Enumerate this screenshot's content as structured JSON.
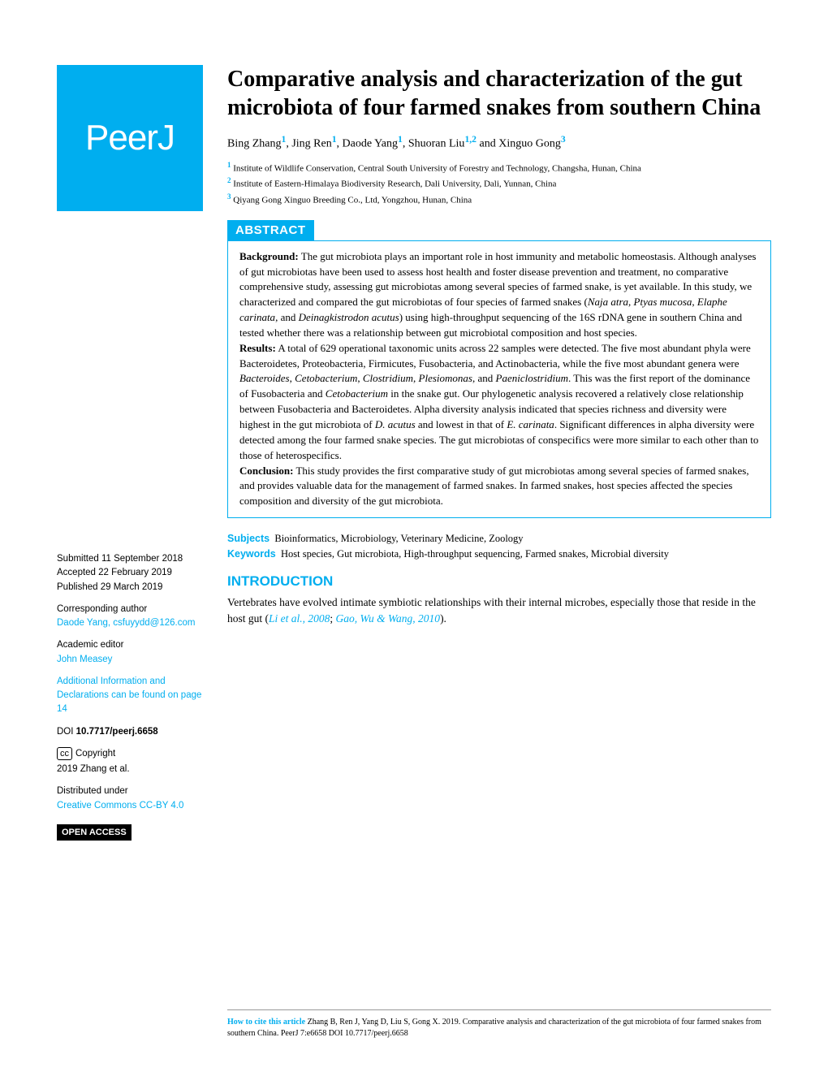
{
  "logo": "PeerJ",
  "title": "Comparative analysis and characterization of the gut microbiota of four farmed snakes from southern China",
  "authors_html": "Bing Zhang<sup>1</sup>, Jing Ren<sup>1</sup>, Daode Yang<sup>1</sup>, Shuoran Liu<sup>1,2</sup> and Xinguo Gong<sup>3</sup>",
  "affiliations": [
    {
      "n": "1",
      "text": "Institute of Wildlife Conservation, Central South University of Forestry and Technology, Changsha, Hunan, China"
    },
    {
      "n": "2",
      "text": "Institute of Eastern-Himalaya Biodiversity Research, Dali University, Dali, Yunnan, China"
    },
    {
      "n": "3",
      "text": "Qiyang Gong Xinguo Breeding Co., Ltd, Yongzhou, Hunan, China"
    }
  ],
  "abstract_label": "ABSTRACT",
  "abstract": {
    "background_label": "Background:",
    "background": "The gut microbiota plays an important role in host immunity and metabolic homeostasis. Although analyses of gut microbiotas have been used to assess host health and foster disease prevention and treatment, no comparative comprehensive study, assessing gut microbiotas among several species of farmed snake, is yet available. In this study, we characterized and compared the gut microbiotas of four species of farmed snakes (Naja atra, Ptyas mucosa, Elaphe carinata, and Deinagkistrodon acutus) using high-throughput sequencing of the 16S rDNA gene in southern China and tested whether there was a relationship between gut microbiotal composition and host species.",
    "results_label": "Results:",
    "results": "A total of 629 operational taxonomic units across 22 samples were detected. The five most abundant phyla were Bacteroidetes, Proteobacteria, Firmicutes, Fusobacteria, and Actinobacteria, while the five most abundant genera were Bacteroides, Cetobacterium, Clostridium, Plesiomonas, and Paeniclostridium. This was the first report of the dominance of Fusobacteria and Cetobacterium in the snake gut. Our phylogenetic analysis recovered a relatively close relationship between Fusobacteria and Bacteroidetes. Alpha diversity analysis indicated that species richness and diversity were highest in the gut microbiota of D. acutus and lowest in that of E. carinata. Significant differences in alpha diversity were detected among the four farmed snake species. The gut microbiotas of conspecifics were more similar to each other than to those of heterospecifics.",
    "conclusion_label": "Conclusion:",
    "conclusion": "This study provides the first comparative study of gut microbiotas among several species of farmed snakes, and provides valuable data for the management of farmed snakes. In farmed snakes, host species affected the species composition and diversity of the gut microbiota."
  },
  "subjects_label": "Subjects",
  "subjects": "Bioinformatics, Microbiology, Veterinary Medicine, Zoology",
  "keywords_label": "Keywords",
  "keywords": "Host species, Gut microbiota, High-throughput sequencing, Farmed snakes, Microbial diversity",
  "intro_header": "INTRODUCTION",
  "intro_text_pre": "Vertebrates have evolved intimate symbiotic relationships with their internal microbes, especially those that reside in the host gut (",
  "intro_cite1": "Li et al., 2008",
  "intro_sep": "; ",
  "intro_cite2": "Gao, Wu & Wang, 2010",
  "intro_text_post": ").",
  "sidebar": {
    "submitted_label": "Submitted",
    "submitted": "11 September 2018",
    "accepted_label": "Accepted",
    "accepted": "22 February 2019",
    "published_label": "Published",
    "published": "29 March 2019",
    "corresponding_label": "Corresponding author",
    "corresponding": "Daode Yang, csfuyydd@126.com",
    "editor_label": "Academic editor",
    "editor": "John Measey",
    "additional": "Additional Information and Declarations can be found on page 14",
    "doi_label": "DOI",
    "doi": "10.7717/peerj.6658",
    "copyright_label": "Copyright",
    "copyright": "2019 Zhang et al.",
    "distributed_label": "Distributed under",
    "distributed": "Creative Commons CC-BY 4.0",
    "open_access": "OPEN ACCESS"
  },
  "footer": {
    "how_label": "How to cite this article",
    "text": "Zhang B, Ren J, Yang D, Liu S, Gong X. 2019. Comparative analysis and characterization of the gut microbiota of four farmed snakes from southern China. PeerJ 7:e6658 DOI 10.7717/peerj.6658"
  },
  "colors": {
    "accent": "#00aeef",
    "text": "#000000",
    "background": "#ffffff"
  }
}
